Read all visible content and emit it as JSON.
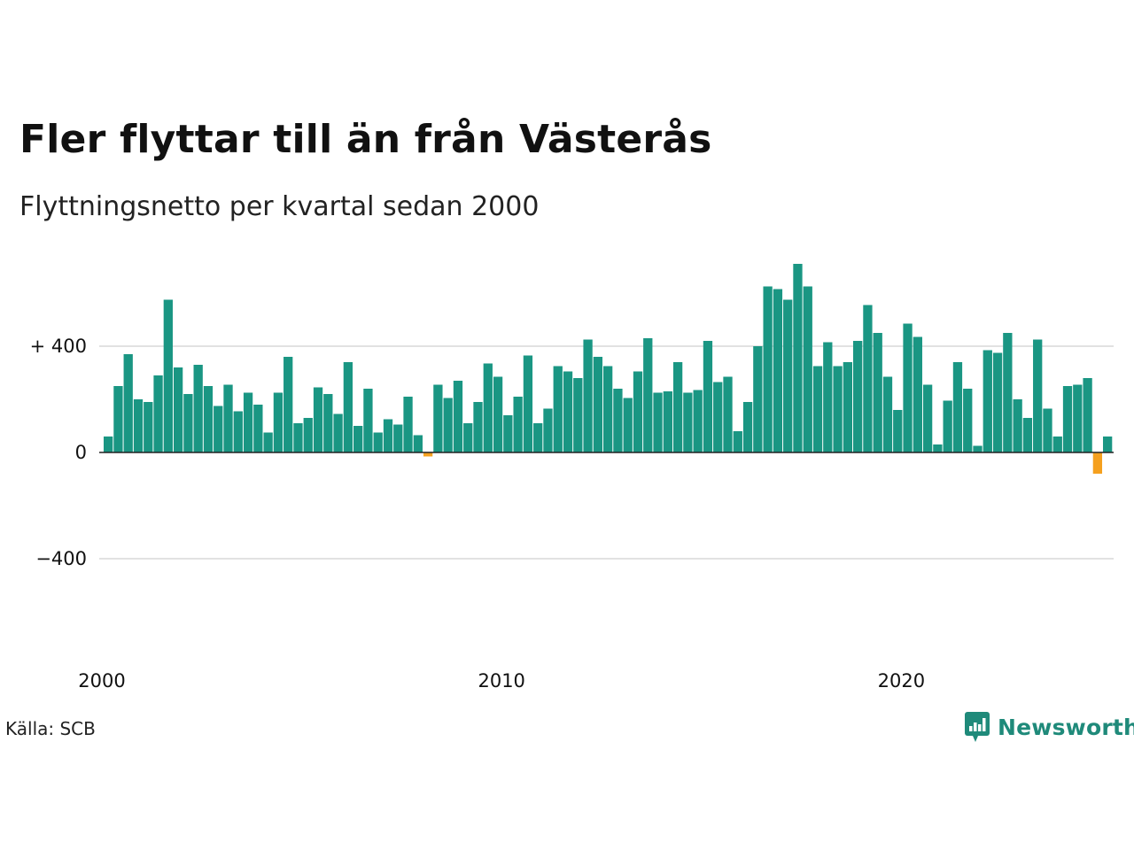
{
  "title": "Fler flyttar till än från Västerås",
  "subtitle": "Flyttningsnetto per kvartal sedan 2000",
  "source": "Källa: SCB",
  "brand": {
    "name": "Newsworthy",
    "icon": "newsworthy-logo-icon"
  },
  "colors": {
    "positive": "#1a9683",
    "negative": "#f5a01e",
    "grid": "#e2e2e2",
    "zero_line": "#222222"
  },
  "chart_data": {
    "type": "bar",
    "title": "Fler flyttar till än från Västerås",
    "subtitle": "Flyttningsnetto per kvartal sedan 2000",
    "xlabel": "",
    "ylabel": "",
    "ylim": [
      -600,
      720
    ],
    "y_ticks": [
      {
        "value": 400,
        "label": "+ 400"
      },
      {
        "value": 0,
        "label": "0"
      },
      {
        "value": -400,
        "label": "−400"
      }
    ],
    "x_ticks": [
      {
        "year": 2000,
        "label": "2000"
      },
      {
        "year": 2010,
        "label": "2010"
      },
      {
        "year": 2020,
        "label": "2020"
      }
    ],
    "start": "2000 Q1",
    "frequency": "quarter",
    "grid": true,
    "values": [
      60,
      250,
      370,
      200,
      190,
      290,
      575,
      320,
      220,
      330,
      250,
      175,
      255,
      155,
      225,
      180,
      75,
      225,
      360,
      110,
      130,
      245,
      220,
      145,
      340,
      100,
      240,
      75,
      125,
      105,
      210,
      65,
      -15,
      255,
      205,
      270,
      110,
      190,
      335,
      285,
      140,
      210,
      365,
      110,
      165,
      325,
      305,
      280,
      425,
      360,
      325,
      240,
      205,
      305,
      430,
      225,
      230,
      340,
      225,
      235,
      420,
      265,
      285,
      80,
      190,
      400,
      625,
      615,
      575,
      710,
      625,
      325,
      415,
      325,
      340,
      420,
      555,
      450,
      285,
      160,
      485,
      435,
      255,
      30,
      195,
      340,
      240,
      25,
      385,
      375,
      450,
      200,
      130,
      425,
      165,
      60,
      250,
      255,
      280,
      -80,
      60
    ]
  }
}
